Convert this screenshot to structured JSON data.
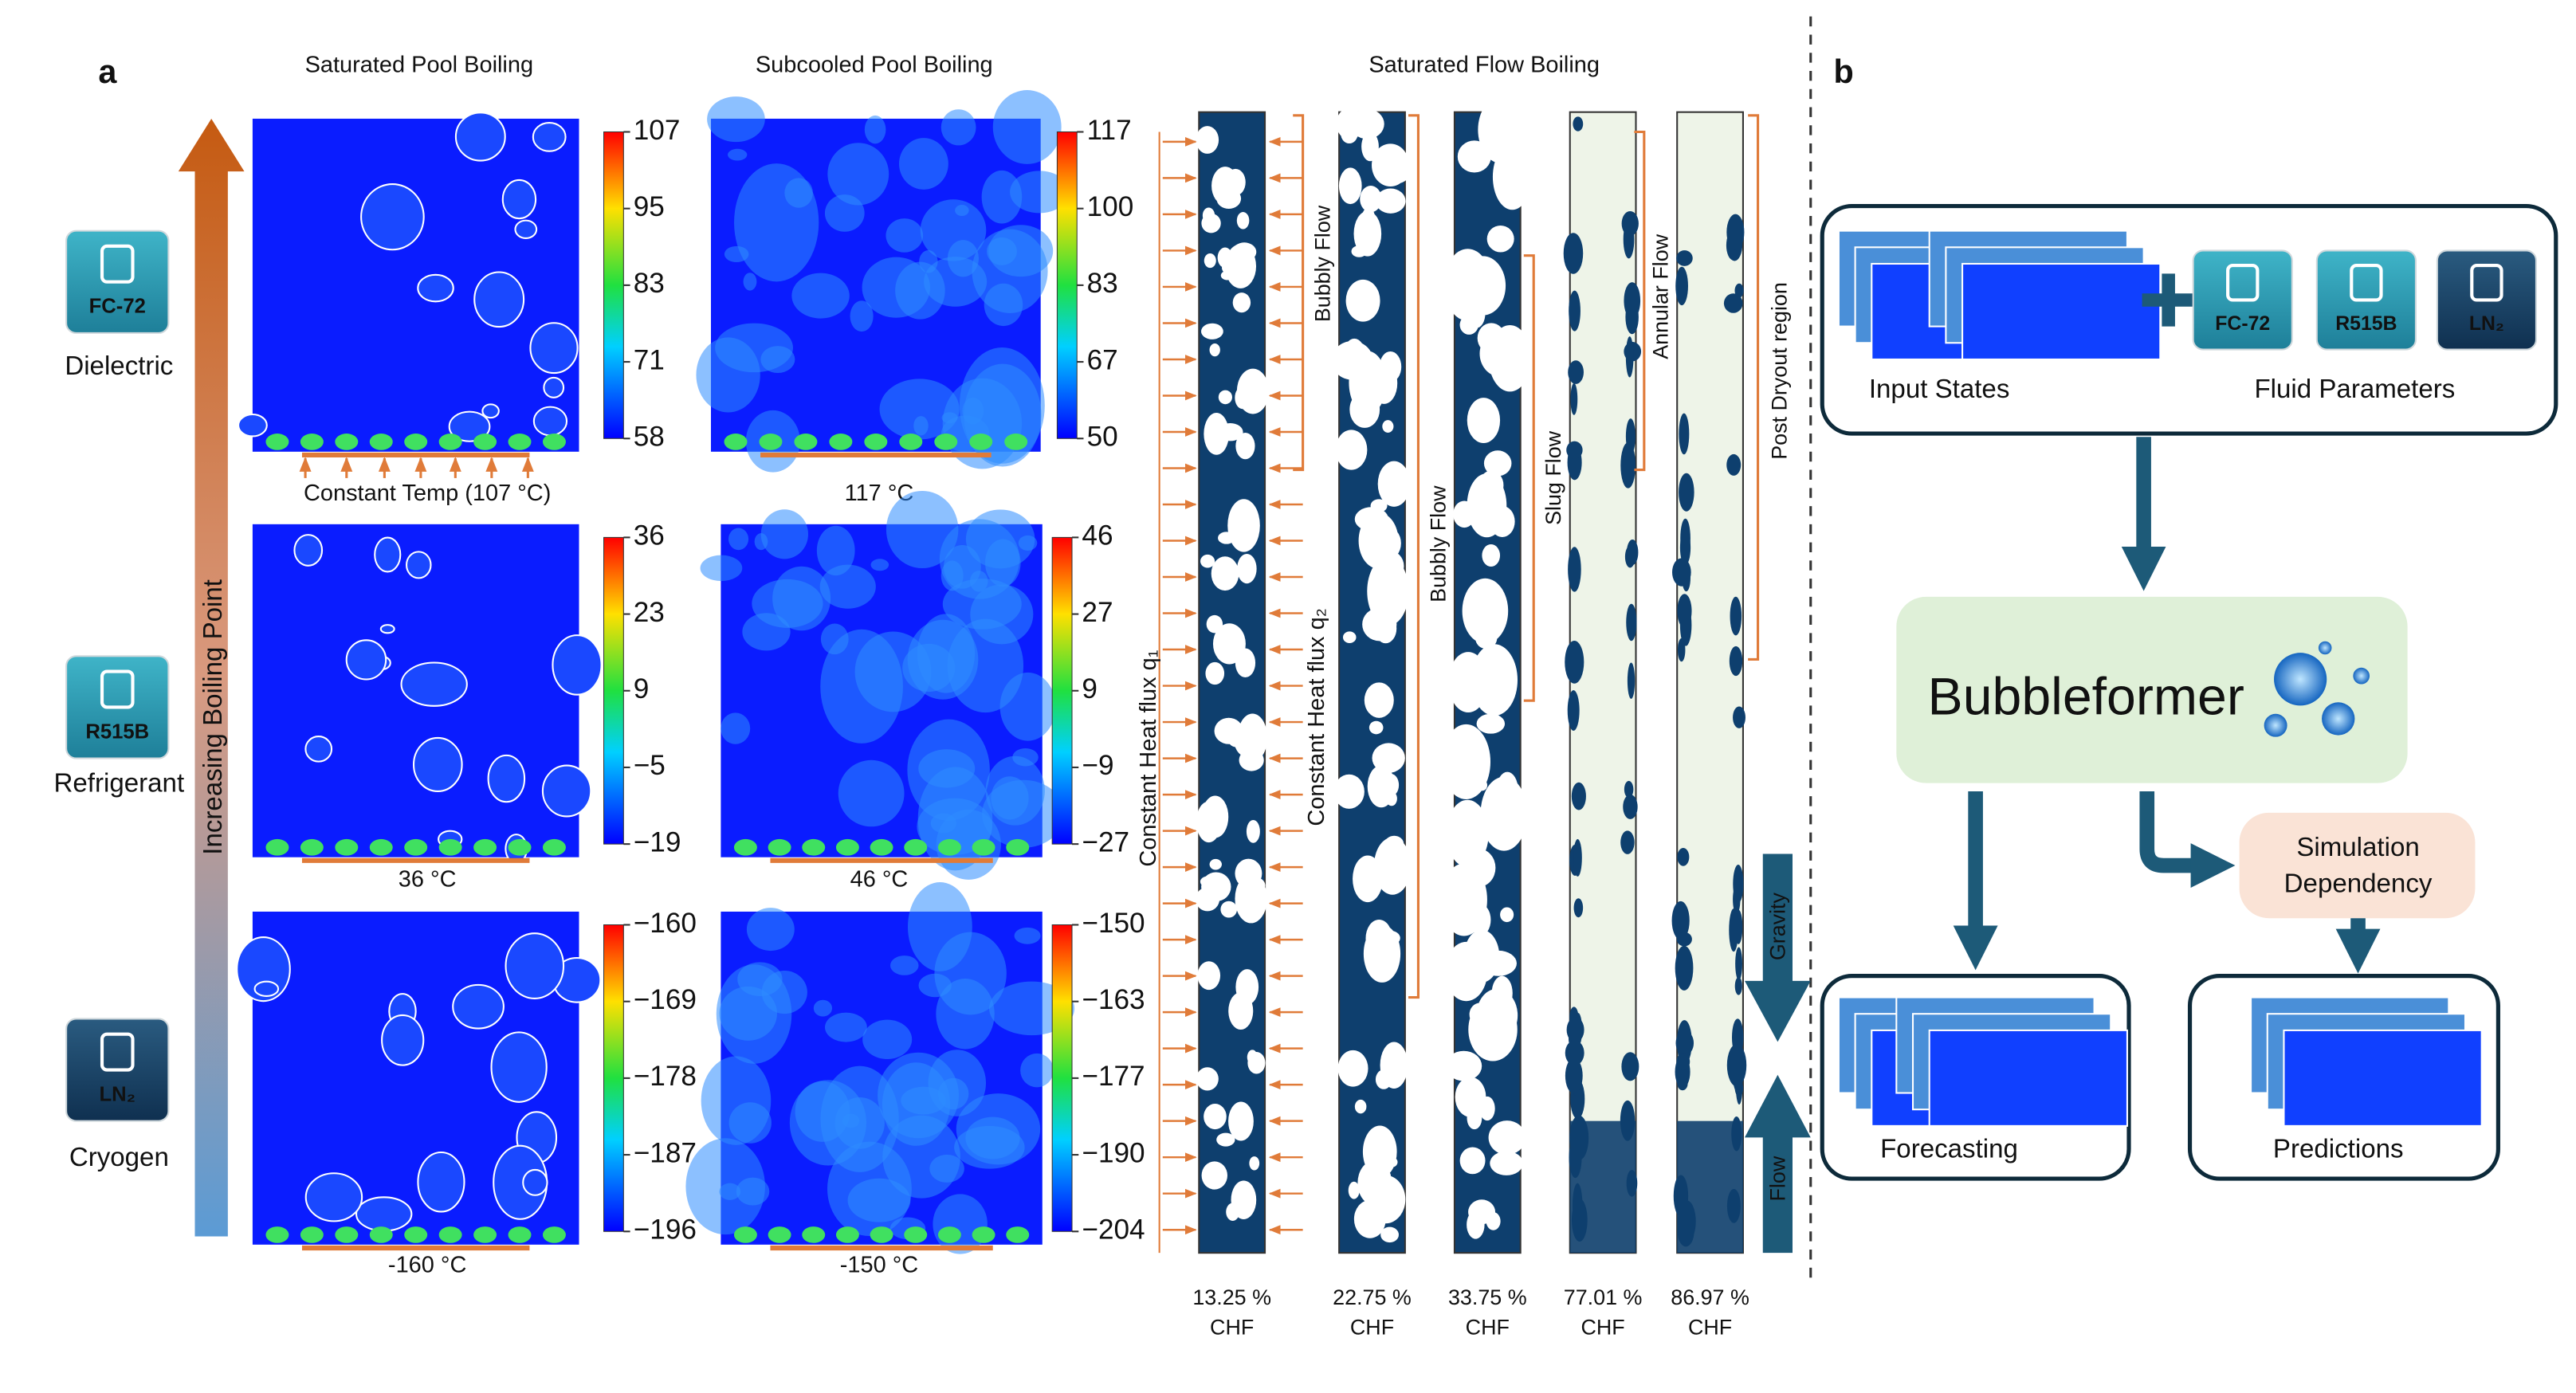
{
  "panel_a": {
    "label": "a",
    "columns": [
      "Saturated Pool Boiling",
      "Subcooled Pool Boiling",
      "Saturated Flow Boiling"
    ],
    "axis_label": "Increasing Boiling Point",
    "fluids": [
      {
        "name": "Dielectric",
        "icon": "FC-72"
      },
      {
        "name": "Refrigerant",
        "icon": "R515B"
      },
      {
        "name": "Cryogen",
        "icon": "LN₂"
      }
    ],
    "pool_rows": [
      {
        "sat_caption": "Constant Temp (107 °C)",
        "sat_ticks": [
          "107",
          "95",
          "83",
          "71",
          "58"
        ],
        "sub_caption": "117 °C",
        "sub_ticks": [
          "117",
          "100",
          "83",
          "67",
          "50"
        ]
      },
      {
        "sat_caption": "36 °C",
        "sat_ticks": [
          "36",
          "23",
          "9",
          "−5",
          "−19"
        ],
        "sub_caption": "46 °C",
        "sub_ticks": [
          "46",
          "27",
          "9",
          "−9",
          "−27"
        ]
      },
      {
        "sat_caption": "-160 °C",
        "sat_ticks": [
          "−160",
          "−169",
          "−178",
          "−187",
          "−196"
        ],
        "sub_caption": "-150 °C",
        "sub_ticks": [
          "−150",
          "−163",
          "−177",
          "−190",
          "−204"
        ]
      }
    ],
    "flow": {
      "cases": [
        {
          "value": "13.25 %",
          "unit": "CHF"
        },
        {
          "value": "22.75 %",
          "unit": "CHF"
        },
        {
          "value": "33.75 %",
          "unit": "CHF"
        },
        {
          "value": "77.01 %",
          "unit": "CHF"
        },
        {
          "value": "86.97 %",
          "unit": "CHF"
        }
      ],
      "regimes": [
        "Bubbly Flow",
        "Bubbly Flow",
        "Slug Flow",
        "Annular Flow",
        "Post Dryout region"
      ],
      "heat_flux_1": "Constant Heat flux q₁",
      "heat_flux_2": "Constant Heat flux q₂",
      "gravity": "Gravity",
      "flow": "Flow"
    }
  },
  "panel_b": {
    "label": "b",
    "input_states": "Input States",
    "fluid_parameters": "Fluid Parameters",
    "icons": [
      "FC-72",
      "R515B",
      "LN₂"
    ],
    "model": "Bubbleformer",
    "dependency": [
      "Simulation",
      "Dependency"
    ],
    "forecasting": "Forecasting",
    "predictions": "Predictions"
  }
}
